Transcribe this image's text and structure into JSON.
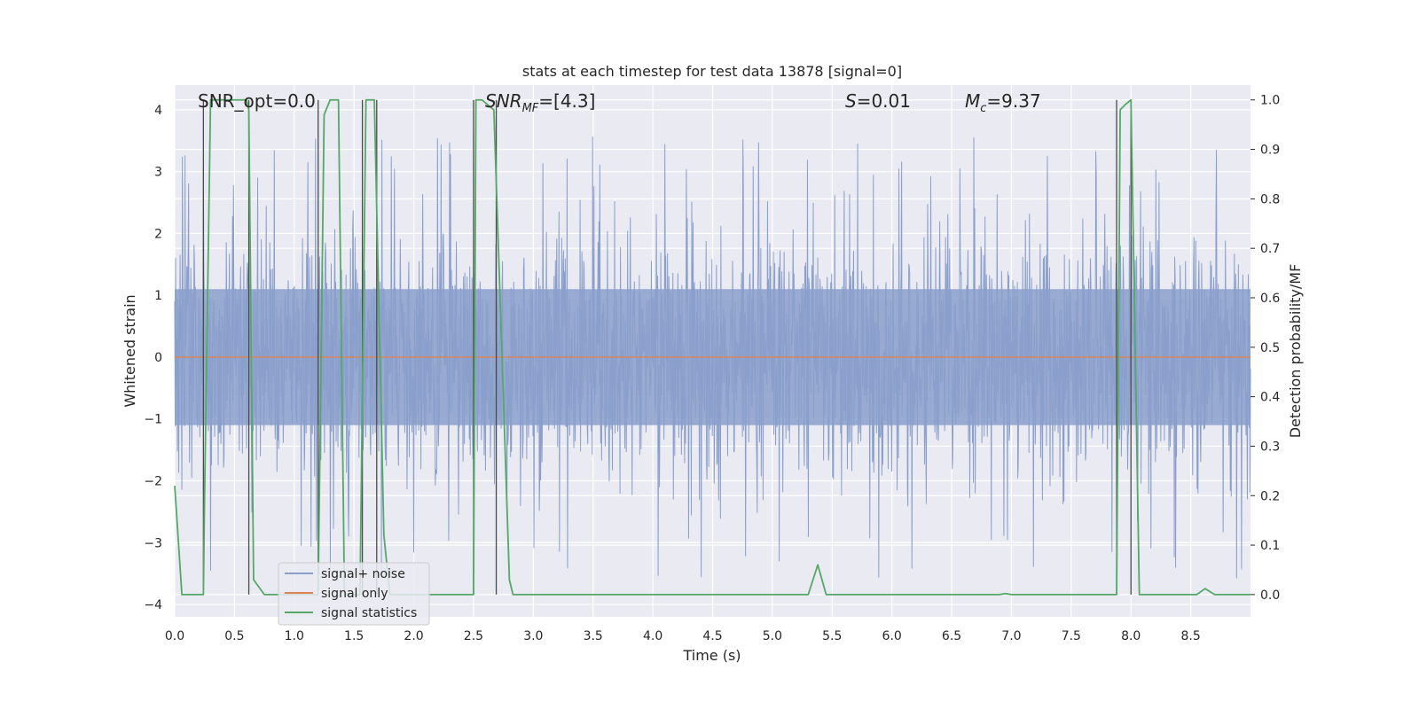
{
  "chart_data": {
    "type": "line",
    "title": "stats at each timestep for test data 13878 [signal=0]",
    "xlabel": "Time (s)",
    "ylabel_left": "Whitened strain",
    "ylabel_right": "Detection probability/MF",
    "xlim": [
      0.0,
      9.0
    ],
    "ylim_left": [
      -4.2,
      4.4
    ],
    "ylim_right": [
      -0.045,
      1.03
    ],
    "x_ticks": [
      0.0,
      0.5,
      1.0,
      1.5,
      2.0,
      2.5,
      3.0,
      3.5,
      4.0,
      4.5,
      5.0,
      5.5,
      6.0,
      6.5,
      7.0,
      7.5,
      8.0,
      8.5
    ],
    "x_tick_labels": [
      "0.0",
      "0.5",
      "1.0",
      "1.5",
      "2.0",
      "2.5",
      "3.0",
      "3.5",
      "4.0",
      "4.5",
      "5.0",
      "5.5",
      "6.0",
      "6.5",
      "7.0",
      "7.5",
      "8.0",
      "8.5"
    ],
    "y_left_ticks": [
      4,
      3,
      2,
      1,
      0,
      -1,
      -2,
      -3,
      -4
    ],
    "y_left_tick_labels": [
      "4",
      "3",
      "2",
      "1",
      "0",
      "−1",
      "−2",
      "−3",
      "−4"
    ],
    "y_right_ticks": [
      1.0,
      0.9,
      0.8,
      0.7,
      0.6,
      0.5,
      0.4,
      0.3,
      0.2,
      0.1,
      0.0
    ],
    "y_right_tick_labels": [
      "1.0",
      "0.9",
      "0.8",
      "0.7",
      "0.6",
      "0.5",
      "0.4",
      "0.3",
      "0.2",
      "0.1",
      "0.0"
    ],
    "annotations": {
      "snr_opt": "SNR_opt=0.0",
      "snr_mf_sym": "SNR",
      "snr_mf_sub": "MF",
      "snr_mf_val": "=[4.3]",
      "s_sym": "S",
      "s_val": "=0.01",
      "mc_sym": "M",
      "mc_sub": "c",
      "mc_val": "=9.37"
    },
    "legend": [
      "signal+ noise",
      "signal only",
      "signal statistics"
    ],
    "colors": {
      "noise": "#8a9fcb",
      "signal": "#dd8452",
      "stats": "#55a868",
      "vline": "#4a4a4a",
      "bg": "#eaeaf2",
      "grid": "#ffffff"
    },
    "signal_plus_noise": {
      "description_free": true,
      "seed": 13878,
      "n_samples": 2400,
      "core_sigma": 1.0,
      "extreme_amplitude": 3.6
    },
    "signal_only": {
      "x": [
        0.0,
        9.0
      ],
      "y": [
        0.0,
        0.0
      ]
    },
    "signal_statistics": {
      "x": [
        0.0,
        0.06,
        0.24,
        0.25,
        0.3,
        0.6,
        0.62,
        0.66,
        0.75,
        1.2,
        1.25,
        1.3,
        1.37,
        1.42,
        1.55,
        1.6,
        1.67,
        1.75,
        1.8,
        2.5,
        2.52,
        2.57,
        2.67,
        2.8,
        2.83,
        5.3,
        5.38,
        5.45,
        6.9,
        6.95,
        7.0,
        7.88,
        7.91,
        7.95,
        8.0,
        8.07,
        8.55,
        8.62,
        8.7,
        9.0
      ],
      "y": [
        0.22,
        0.0,
        0.0,
        0.2,
        1.0,
        1.0,
        0.98,
        0.03,
        0.0,
        0.0,
        0.97,
        1.0,
        1.0,
        0.0,
        0.0,
        1.0,
        1.0,
        0.12,
        0.0,
        0.0,
        1.0,
        1.0,
        0.98,
        0.03,
        0.0,
        0.0,
        0.06,
        0.0,
        0.0,
        0.002,
        0.0,
        0.0,
        0.98,
        0.99,
        1.0,
        0.0,
        0.0,
        0.012,
        0.0,
        0.0
      ]
    },
    "detection_markers_s": [
      0.24,
      0.62,
      1.2,
      1.57,
      1.69,
      2.5,
      2.69,
      7.88,
      8.0
    ]
  }
}
